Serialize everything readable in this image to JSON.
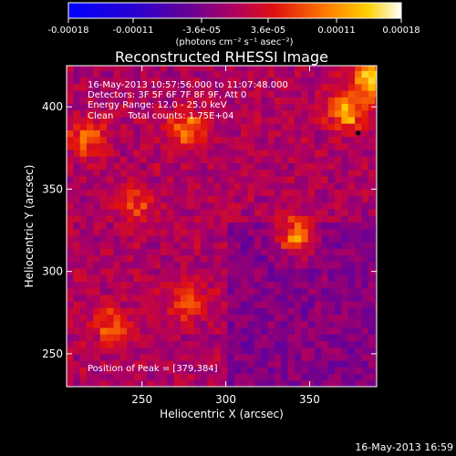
{
  "chart_data": {
    "type": "heatmap",
    "title": "Reconstructed RHESSI Image",
    "xlabel": "Heliocentric X (arcsec)",
    "ylabel": "Heliocentric Y (arcsec)",
    "xlim": [
      205,
      390
    ],
    "ylim": [
      230,
      425
    ],
    "x_ticks": [
      250,
      300,
      350
    ],
    "y_ticks": [
      250,
      300,
      350,
      400
    ],
    "colorbar": {
      "ticks": [
        "-0.00018",
        "-0.00011",
        "-3.6e-05",
        "3.6e-05",
        "0.00011",
        "0.00018"
      ],
      "range": [
        -0.00018,
        0.00018
      ],
      "unit_label": "(photons cm⁻² s⁻¹ asec⁻²)"
    },
    "annotations": [
      "16-May-2013 10:57:56.000 to 11:07:48.000",
      "Detectors: 3F 5F 6F 7F 8F 9F, Att 0",
      "Energy Range: 12.0 - 25.0 keV",
      "Clean     Total counts: 1.75E+04"
    ],
    "peak_label": "Position of Peak = [379,384]",
    "peak": [
      379,
      384
    ],
    "bright_sources": [
      {
        "x": 385,
        "y": 415,
        "value": 0.00018
      },
      {
        "x": 370,
        "y": 395,
        "value": 0.00014
      },
      {
        "x": 340,
        "y": 320,
        "value": 0.00015
      },
      {
        "x": 275,
        "y": 385,
        "value": 0.00012
      },
      {
        "x": 215,
        "y": 380,
        "value": 0.0001
      },
      {
        "x": 275,
        "y": 280,
        "value": 0.0001
      },
      {
        "x": 245,
        "y": 340,
        "value": 8e-05
      },
      {
        "x": 230,
        "y": 265,
        "value": 9e-05
      }
    ]
  },
  "footer": {
    "timestamp": "16-May-2013 16:59"
  }
}
